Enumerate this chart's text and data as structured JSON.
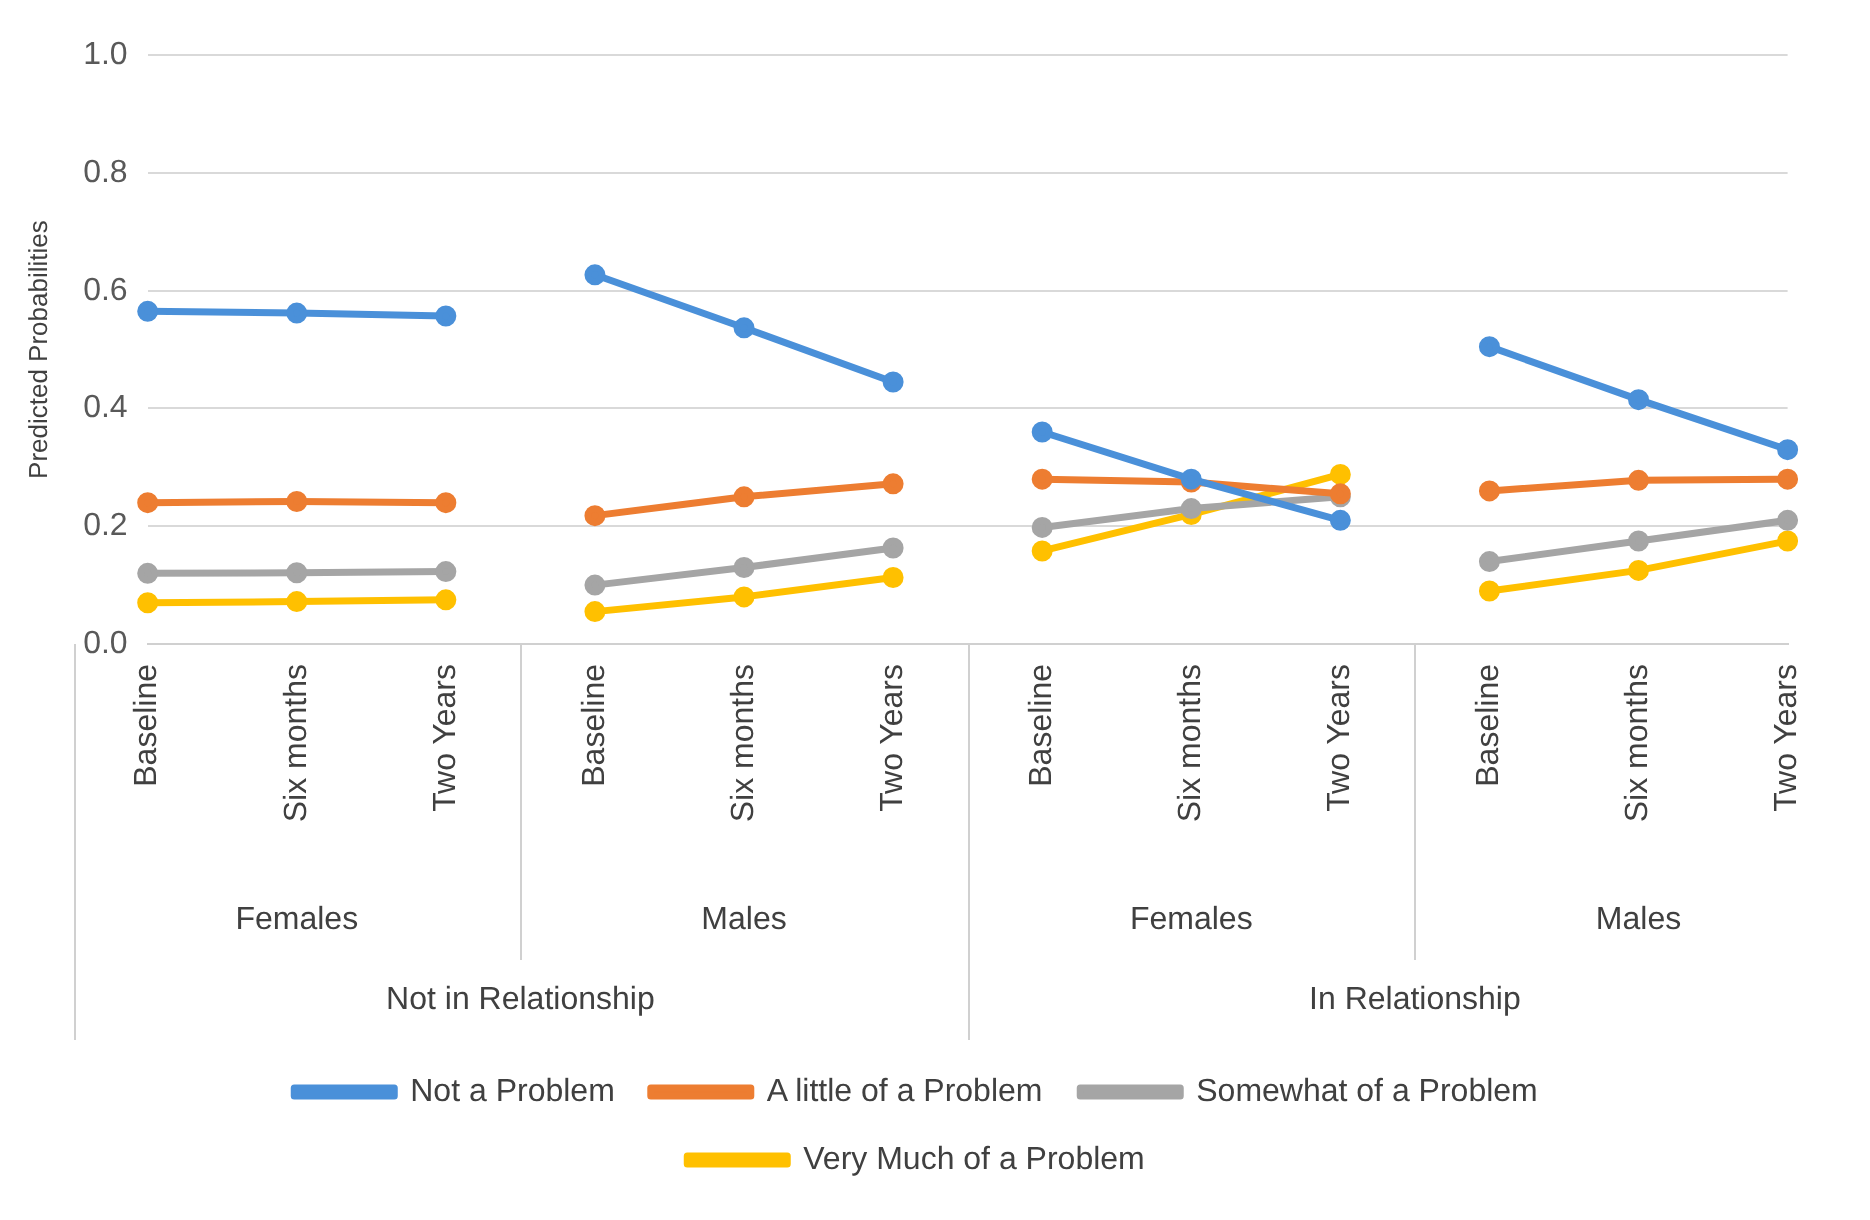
{
  "chart_data": {
    "type": "line",
    "ylabel": "Predicted Probabilities",
    "categories": [
      "Baseline",
      "Six months",
      "Two Years",
      "Baseline",
      "Six months",
      "Two Years",
      "Baseline",
      "Six months",
      "Two Years",
      "Baseline",
      "Six months",
      "Two Years"
    ],
    "annotations": [
      "Females",
      "Males",
      "Females",
      "Males",
      "Not in Relationship",
      "In Relationship"
    ],
    "series": [
      {
        "name": "Not a Problem",
        "color": "#4a90d9",
        "values": [
          0.565,
          0.562,
          0.557,
          0.627,
          0.537,
          0.445,
          0.36,
          0.28,
          0.21,
          0.505,
          0.415,
          0.33
        ]
      },
      {
        "name": "A little of a Problem",
        "color": "#ed7d31",
        "values": [
          0.24,
          0.242,
          0.24,
          0.218,
          0.25,
          0.272,
          0.28,
          0.275,
          0.255,
          0.26,
          0.278,
          0.28
        ]
      },
      {
        "name": "Somewhat of a Problem",
        "color": "#a5a5a5",
        "values": [
          0.12,
          0.121,
          0.123,
          0.1,
          0.13,
          0.163,
          0.198,
          0.23,
          0.25,
          0.14,
          0.175,
          0.21
        ]
      },
      {
        "name": "Very Much of a Problem",
        "color": "#ffc000",
        "values": [
          0.07,
          0.072,
          0.075,
          0.055,
          0.08,
          0.113,
          0.158,
          0.22,
          0.288,
          0.09,
          0.125,
          0.175
        ]
      }
    ],
    "ylim": [
      0,
      1
    ],
    "yticks": [
      {
        "value": 0,
        "label": "0.0"
      },
      {
        "value": 0.2,
        "label": "0.2"
      },
      {
        "value": 0.4,
        "label": "0.4"
      },
      {
        "value": 0.6,
        "label": "0.6"
      },
      {
        "value": 0.8,
        "label": "0.8"
      },
      {
        "value": 1,
        "label": "1.0"
      }
    ],
    "grid": "y",
    "legend": "bottom",
    "marker": "circle",
    "line_style": "solid"
  }
}
